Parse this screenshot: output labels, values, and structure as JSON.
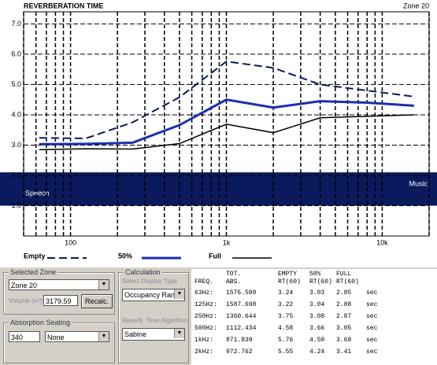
{
  "chart": {
    "type": "line",
    "title": "REVERBERATION TIME",
    "zone_label": "Zone 20",
    "x": [
      63,
      125,
      250,
      500,
      1000,
      2000,
      4000,
      8000,
      16000
    ],
    "xlim": [
      50,
      20000
    ],
    "log_x": true,
    "xticks": [
      100,
      {
        "value": 1000,
        "label": "1k"
      },
      {
        "value": 10000,
        "label": "10k"
      }
    ],
    "xgrid": [
      50,
      60,
      70,
      80,
      90,
      100,
      200,
      300,
      400,
      500,
      600,
      700,
      800,
      900,
      1000,
      2000,
      3000,
      4000,
      5000,
      6000,
      7000,
      8000,
      9000,
      10000,
      20000
    ],
    "ylim": [
      0,
      7.4
    ],
    "yticks": [
      {
        "value": 1,
        "label": "1.0"
      },
      {
        "value": 2,
        "label": "2.0"
      },
      {
        "value": 3,
        "label": "3.0"
      },
      {
        "value": 4,
        "label": "4.0"
      },
      {
        "value": 5,
        "label": "5.0"
      },
      {
        "value": 6,
        "label": "6.0"
      },
      {
        "value": 7,
        "label": "7.0"
      }
    ],
    "grid": true,
    "band": {
      "range": [
        1.0,
        2.1
      ],
      "color": "#0a1a5c",
      "labels": [
        "Speech",
        "Music"
      ]
    },
    "series": [
      {
        "name": "Empty",
        "color": "#0a1a5c",
        "dash": true,
        "width": 2,
        "values": [
          3.24,
          3.22,
          3.75,
          4.58,
          5.76,
          5.55,
          5.0,
          4.8,
          4.6
        ]
      },
      {
        "name": "50%",
        "color": "#1a2fb0",
        "dash": false,
        "width": 3,
        "values": [
          3.03,
          3.04,
          3.08,
          3.66,
          4.5,
          4.24,
          4.45,
          4.4,
          4.3
        ]
      },
      {
        "name": "Full",
        "color": "#000000",
        "dash": false,
        "width": 1.5,
        "values": [
          2.85,
          2.88,
          2.87,
          3.05,
          3.69,
          3.41,
          3.9,
          3.95,
          4.0
        ]
      }
    ]
  },
  "panel": {
    "zone": {
      "title": "Selected Zone",
      "zone": "Zone 20",
      "volume_label": "Volume (m³)",
      "volume": "3179.59",
      "button": "Recalc."
    },
    "seating": {
      "title": "Absorption Seating",
      "count": "340",
      "type": "None"
    },
    "calc": {
      "title": "Calculation",
      "display_label": "Select Display Type",
      "display": "Occupancy Range",
      "algo_label": "Reverb. Time Algorithm",
      "algo": "Sabine"
    },
    "table": {
      "header_top": [
        "TOT.",
        "EMPTY",
        "50%",
        "FULL"
      ],
      "header": [
        "FREQ.",
        "ABS.",
        "RT(60)",
        "RT(60)",
        "RT(60)"
      ],
      "rows": [
        [
          "63Hz:",
          "1576.580",
          "3.24",
          "3.03",
          "2.85",
          "sec"
        ],
        [
          "125Hz:",
          "1587.698",
          "3.22",
          "3.04",
          "2.88",
          "sec"
        ],
        [
          "250Hz:",
          "1360.644",
          "3.75",
          "3.08",
          "2.87",
          "sec"
        ],
        [
          "500Hz:",
          "1112.434",
          "4.58",
          "3.66",
          "3.05",
          "sec"
        ],
        [
          "1kHz:",
          "871.839",
          "5.76",
          "4.50",
          "3.69",
          "sec"
        ],
        [
          "2kHz:",
          "972.762",
          "5.55",
          "4.24",
          "3.41",
          "sec"
        ]
      ]
    }
  }
}
